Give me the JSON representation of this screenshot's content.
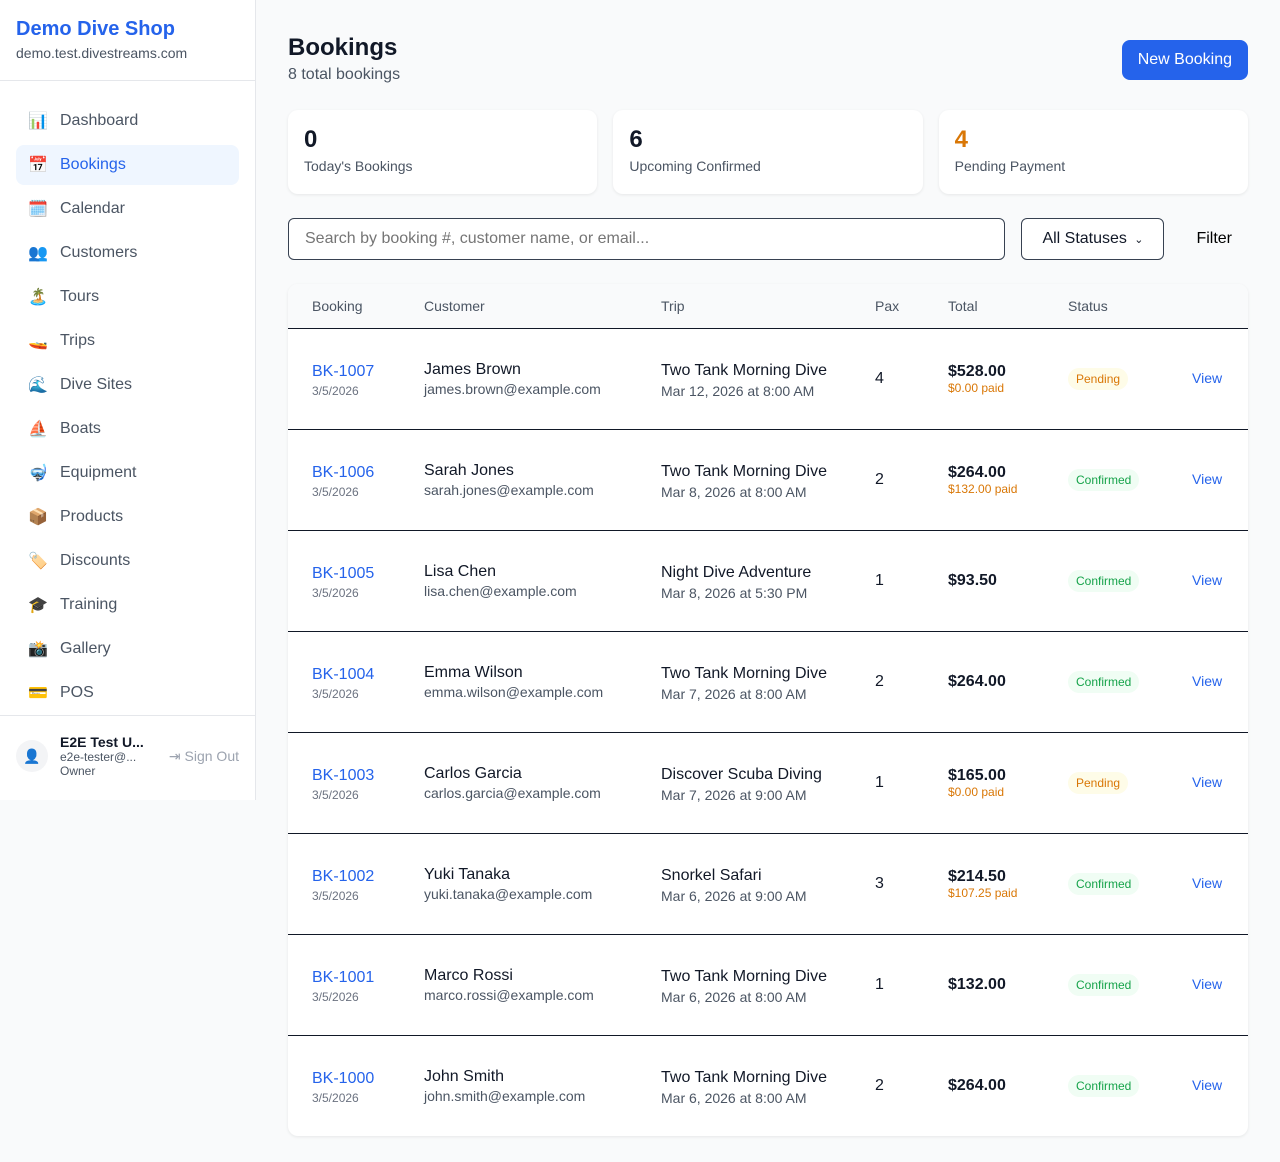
{
  "sidebar": {
    "brand": "Demo Dive Shop",
    "domain": "demo.test.divestreams.com",
    "items": [
      {
        "icon": "📊",
        "label": "Dashboard"
      },
      {
        "icon": "📅",
        "label": "Bookings",
        "active": true
      },
      {
        "icon": "🗓️",
        "label": "Calendar"
      },
      {
        "icon": "👥",
        "label": "Customers"
      },
      {
        "icon": "🏝️",
        "label": "Tours"
      },
      {
        "icon": "🚤",
        "label": "Trips"
      },
      {
        "icon": "🌊",
        "label": "Dive Sites"
      },
      {
        "icon": "⛵",
        "label": "Boats"
      },
      {
        "icon": "🤿",
        "label": "Equipment"
      },
      {
        "icon": "📦",
        "label": "Products"
      },
      {
        "icon": "🏷️",
        "label": "Discounts"
      },
      {
        "icon": "🎓",
        "label": "Training"
      },
      {
        "icon": "📸",
        "label": "Gallery"
      },
      {
        "icon": "💳",
        "label": "POS"
      }
    ],
    "user": {
      "name": "E2E Test U...",
      "email": "e2e-tester@...",
      "role": "Owner",
      "signout": "Sign Out"
    }
  },
  "header": {
    "title": "Bookings",
    "subtitle": "8 total bookings",
    "new_button": "New Booking"
  },
  "stats": [
    {
      "value": "0",
      "label": "Today's Bookings"
    },
    {
      "value": "6",
      "label": "Upcoming Confirmed"
    },
    {
      "value": "4",
      "label": "Pending Payment",
      "color": "#d97706"
    }
  ],
  "filters": {
    "search_placeholder": "Search by booking #, customer name, or email...",
    "status": "All Statuses",
    "filter_button": "Filter"
  },
  "table": {
    "headers": [
      "Booking",
      "Customer",
      "Trip",
      "Pax",
      "Total",
      "Status",
      ""
    ],
    "rows": [
      {
        "id": "BK-1007",
        "date": "3/5/2026",
        "name": "James Brown",
        "email": "james.brown@example.com",
        "trip": "Two Tank Morning Dive",
        "when": "Mar 12, 2026 at 8:00 AM",
        "pax": "4",
        "total": "$528.00",
        "paid": "$0.00 paid",
        "status": "Pending",
        "action": "View"
      },
      {
        "id": "BK-1006",
        "date": "3/5/2026",
        "name": "Sarah Jones",
        "email": "sarah.jones@example.com",
        "trip": "Two Tank Morning Dive",
        "when": "Mar 8, 2026 at 8:00 AM",
        "pax": "2",
        "total": "$264.00",
        "paid": "$132.00 paid",
        "status": "Confirmed",
        "action": "View"
      },
      {
        "id": "BK-1005",
        "date": "3/5/2026",
        "name": "Lisa Chen",
        "email": "lisa.chen@example.com",
        "trip": "Night Dive Adventure",
        "when": "Mar 8, 2026 at 5:30 PM",
        "pax": "1",
        "total": "$93.50",
        "paid": "",
        "status": "Confirmed",
        "action": "View"
      },
      {
        "id": "BK-1004",
        "date": "3/5/2026",
        "name": "Emma Wilson",
        "email": "emma.wilson@example.com",
        "trip": "Two Tank Morning Dive",
        "when": "Mar 7, 2026 at 8:00 AM",
        "pax": "2",
        "total": "$264.00",
        "paid": "",
        "status": "Confirmed",
        "action": "View"
      },
      {
        "id": "BK-1003",
        "date": "3/5/2026",
        "name": "Carlos Garcia",
        "email": "carlos.garcia@example.com",
        "trip": "Discover Scuba Diving",
        "when": "Mar 7, 2026 at 9:00 AM",
        "pax": "1",
        "total": "$165.00",
        "paid": "$0.00 paid",
        "status": "Pending",
        "action": "View"
      },
      {
        "id": "BK-1002",
        "date": "3/5/2026",
        "name": "Yuki Tanaka",
        "email": "yuki.tanaka@example.com",
        "trip": "Snorkel Safari",
        "when": "Mar 6, 2026 at 9:00 AM",
        "pax": "3",
        "total": "$214.50",
        "paid": "$107.25 paid",
        "status": "Confirmed",
        "action": "View"
      },
      {
        "id": "BK-1001",
        "date": "3/5/2026",
        "name": "Marco Rossi",
        "email": "marco.rossi@example.com",
        "trip": "Two Tank Morning Dive",
        "when": "Mar 6, 2026 at 8:00 AM",
        "pax": "1",
        "total": "$132.00",
        "paid": "",
        "status": "Confirmed",
        "action": "View"
      },
      {
        "id": "BK-1000",
        "date": "3/5/2026",
        "name": "John Smith",
        "email": "john.smith@example.com",
        "trip": "Two Tank Morning Dive",
        "when": "Mar 6, 2026 at 8:00 AM",
        "pax": "2",
        "total": "$264.00",
        "paid": "",
        "status": "Confirmed",
        "action": "View"
      }
    ]
  }
}
